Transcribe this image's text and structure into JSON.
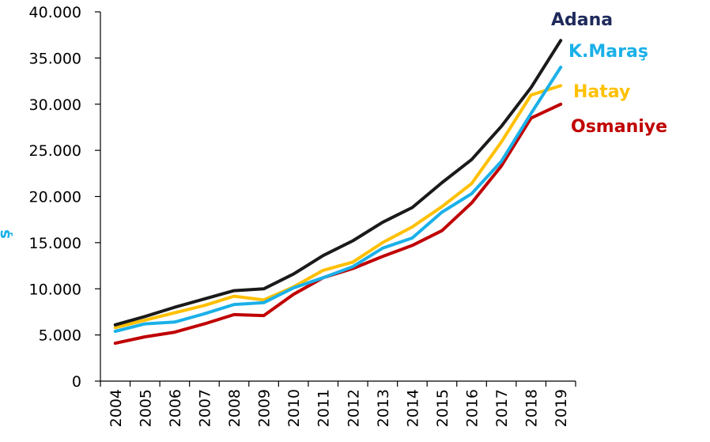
{
  "chart_data": {
    "type": "line",
    "ylabel": "ş",
    "ylim": [
      0,
      40000
    ],
    "y_ticks": [
      "0",
      "5.000",
      "10.000",
      "15.000",
      "20.000",
      "25.000",
      "30.000",
      "35.000",
      "40.000"
    ],
    "x": [
      "2004",
      "2005",
      "2006",
      "2007",
      "2008",
      "2009",
      "2010",
      "2011",
      "2012",
      "2013",
      "2014",
      "2015",
      "2016",
      "2017",
      "2018",
      "2019"
    ],
    "grid": false,
    "legend": "right",
    "series": [
      {
        "name": "Adana",
        "color": "#1a1a1a",
        "label_color": "#1f2a5c",
        "values": [
          6100,
          7000,
          8000,
          8900,
          9800,
          10000,
          11600,
          13600,
          15200,
          17200,
          18800,
          21500,
          24000,
          27600,
          31800,
          36900
        ]
      },
      {
        "name": "K.Maraş",
        "color": "#1ab0e8",
        "label_color": "#1ab0e8",
        "values": [
          5400,
          6200,
          6400,
          7300,
          8300,
          8500,
          10100,
          11200,
          12400,
          14400,
          15500,
          18300,
          20300,
          23800,
          29000,
          34000
        ]
      },
      {
        "name": "Hatay",
        "color": "#ffc000",
        "label_color": "#ffc000",
        "values": [
          5800,
          6600,
          7400,
          8200,
          9200,
          8800,
          10200,
          12000,
          12900,
          15000,
          16700,
          18900,
          21400,
          25900,
          31000,
          32000
        ]
      },
      {
        "name": "Osmaniye",
        "color": "#c00000",
        "label_color": "#c00000",
        "values": [
          4100,
          4800,
          5300,
          6200,
          7200,
          7100,
          9400,
          11200,
          12200,
          13500,
          14700,
          16300,
          19300,
          23300,
          28500,
          30000
        ]
      }
    ]
  }
}
